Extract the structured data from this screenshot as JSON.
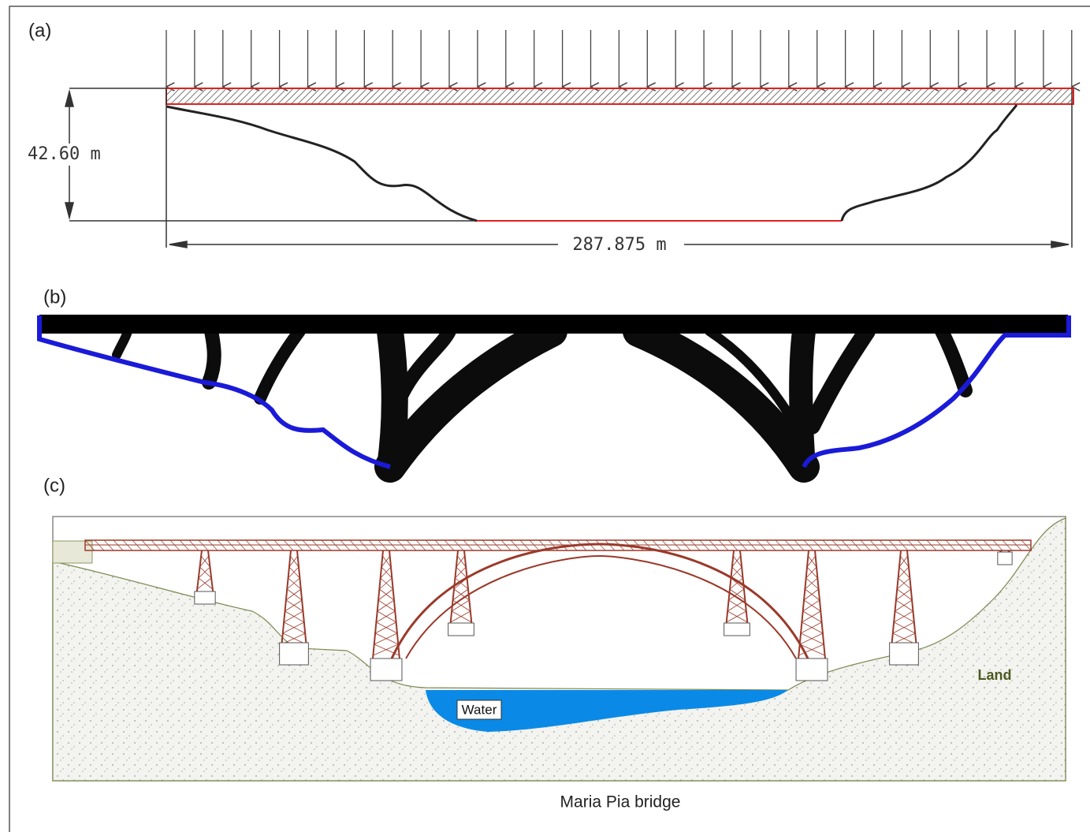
{
  "panels": [
    {
      "label": "(a)",
      "dimensions": {
        "height": "42.60  m",
        "span": "287.875  m"
      }
    },
    {
      "label": "(b)"
    },
    {
      "label": "(c)",
      "annotations": {
        "water": "Water",
        "land": "Land"
      },
      "caption": "Maria Pia bridge"
    }
  ]
}
